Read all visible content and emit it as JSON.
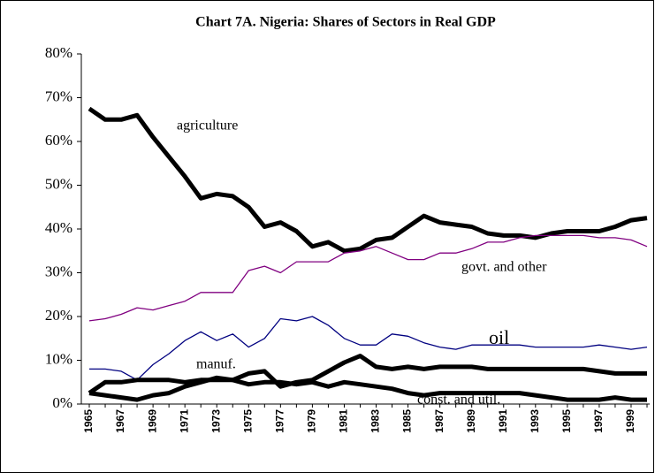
{
  "chart_data": {
    "type": "line",
    "title": "Chart 7A. Nigeria: Shares of Sectors in Real GDP",
    "categories": [
      "1965",
      null,
      "1967",
      null,
      "1969",
      null,
      "1971",
      null,
      "1973",
      null,
      "1975",
      null,
      "1977",
      null,
      "1979",
      null,
      "1981",
      null,
      "1983",
      null,
      "1985",
      null,
      "1987",
      null,
      "1989",
      null,
      "1991",
      null,
      "1993",
      null,
      "1995",
      null,
      "1997",
      null,
      "1999",
      null
    ],
    "series": [
      {
        "name": "agriculture",
        "color": "#000000",
        "values": [
          67.5,
          65,
          65,
          66,
          61,
          56.5,
          52,
          47,
          48,
          47.5,
          45,
          40.5,
          41.5,
          39.5,
          36,
          37,
          35,
          35.5,
          37.5,
          38,
          40.5,
          43,
          41.5,
          41,
          40.5,
          39,
          38.5,
          38.5,
          38,
          39,
          39.5,
          39.5,
          39.5,
          40.5,
          42,
          42.5
        ]
      },
      {
        "name": "govt. and other",
        "color": "#800080",
        "values": [
          19,
          19.5,
          20.5,
          22,
          21.5,
          22.5,
          23.5,
          25.5,
          25.5,
          25.5,
          30.5,
          31.5,
          30,
          32.5,
          32.5,
          32.5,
          34.5,
          35,
          36,
          34.5,
          33,
          33,
          34.5,
          34.5,
          35.5,
          37,
          37,
          38,
          38.5,
          38.5,
          38.5,
          38.5,
          38,
          38,
          37.5,
          36
        ]
      },
      {
        "name": "oil",
        "color": "#000080",
        "values": [
          8,
          8,
          7.5,
          5.5,
          9,
          11.5,
          14.5,
          16.5,
          14.5,
          16,
          13,
          15,
          19.5,
          19,
          20,
          18,
          15,
          13.5,
          13.5,
          16,
          15.5,
          14,
          13,
          12.5,
          13.5,
          13.5,
          13.5,
          13.5,
          13,
          13,
          13,
          13,
          13.5,
          13,
          12.5,
          13
        ]
      },
      {
        "name": "manuf.",
        "color": "#000000",
        "values": [
          2.5,
          5,
          5,
          5.5,
          5.5,
          5.5,
          5,
          5.5,
          5.5,
          5.5,
          7,
          7.5,
          4,
          5,
          5.5,
          7.5,
          9.5,
          11,
          8.5,
          8,
          8.5,
          8,
          8.5,
          8.5,
          8.5,
          8,
          8,
          8,
          8,
          8,
          8,
          8,
          7.5,
          7,
          7,
          7
        ]
      },
      {
        "name": "const. and util.",
        "color": "#000000",
        "values": [
          2.5,
          2,
          1.5,
          1,
          2,
          2.5,
          4,
          5,
          6,
          5.5,
          4.5,
          5,
          5,
          4.5,
          5,
          4,
          5,
          4.5,
          4,
          3.5,
          2.5,
          2,
          2.5,
          2.5,
          2.5,
          2.5,
          2.5,
          2.5,
          2,
          1.5,
          1,
          1,
          1,
          1.5,
          1,
          1
        ]
      }
    ],
    "ylim": [
      0,
      80
    ],
    "yticks": [
      {
        "value": 0,
        "label": "0%"
      },
      {
        "value": 10,
        "label": "10%"
      },
      {
        "value": 20,
        "label": "20%"
      },
      {
        "value": 30,
        "label": "30%"
      },
      {
        "value": 40,
        "label": "40%"
      },
      {
        "value": 50,
        "label": "50%"
      },
      {
        "value": 60,
        "label": "60%"
      },
      {
        "value": 70,
        "label": "70%"
      },
      {
        "value": 80,
        "label": "80%"
      }
    ]
  }
}
